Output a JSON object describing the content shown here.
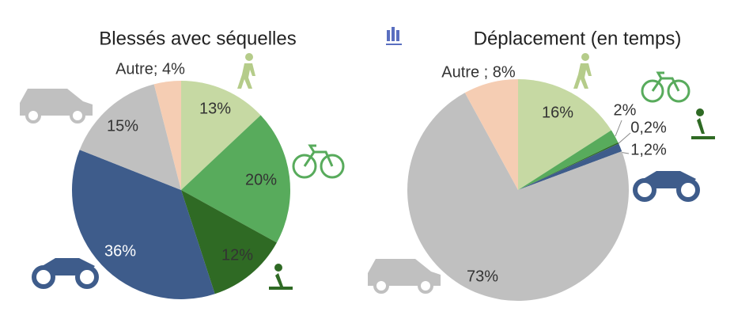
{
  "chart_data": [
    {
      "type": "pie",
      "title": "Blessés avec séquelles",
      "values": [
        13,
        20,
        12,
        36,
        15,
        4
      ],
      "value_labels": [
        "13%",
        "20%",
        "12%",
        "36%",
        "15%",
        "Autre; 4%"
      ],
      "colors": [
        "#c6d9a3",
        "#58ab5c",
        "#2f6a24",
        "#3e5c8b",
        "#c0c0c0",
        "#f5cdb3"
      ]
    },
    {
      "type": "pie",
      "title": "Déplacement (en temps)",
      "values": [
        16,
        2,
        0.2,
        1.2,
        73,
        8
      ],
      "value_labels": [
        "16%",
        "2%",
        "0,2%",
        "1,2%",
        "73%",
        "Autre ; 8%"
      ],
      "colors": [
        "#c6d9a3",
        "#58ab5c",
        "#2f6a24",
        "#3e5c8b",
        "#c0c0c0",
        "#f5cdb3"
      ]
    }
  ]
}
